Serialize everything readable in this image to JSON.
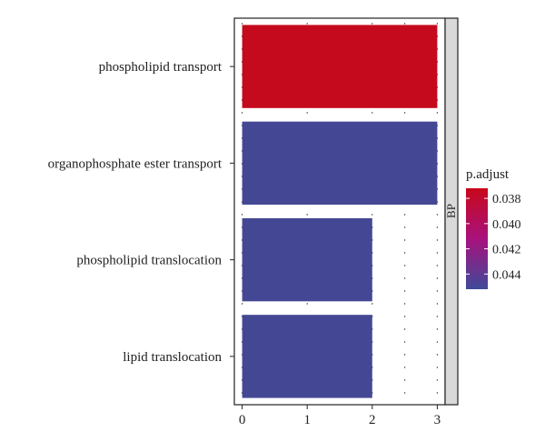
{
  "chart_data": {
    "type": "bar",
    "orientation": "horizontal",
    "categories": [
      "phospholipid transport",
      "organophosphate ester transport",
      "phospholipid translocation",
      "lipid translocation"
    ],
    "values": [
      3,
      3,
      2,
      2
    ],
    "p_adjust": [
      0.0374,
      0.0449,
      0.0449,
      0.0449
    ],
    "xlim": [
      -0.12,
      3.12
    ],
    "x_ticks": [
      0,
      1,
      2,
      3
    ],
    "x_tick_labels": [
      "0",
      "1",
      "2",
      "3"
    ],
    "facet_label": "BP",
    "legend": {
      "title": "p.adjust",
      "placement": "right",
      "range": [
        0.0372,
        0.0452
      ],
      "ticks": [
        0.038,
        0.04,
        0.042,
        0.044
      ],
      "tick_labels": [
        "0.038",
        "0.040",
        "0.042",
        "0.044"
      ],
      "low_color": "#c8081a",
      "high_color": "#3f4a99"
    },
    "grid": false
  }
}
